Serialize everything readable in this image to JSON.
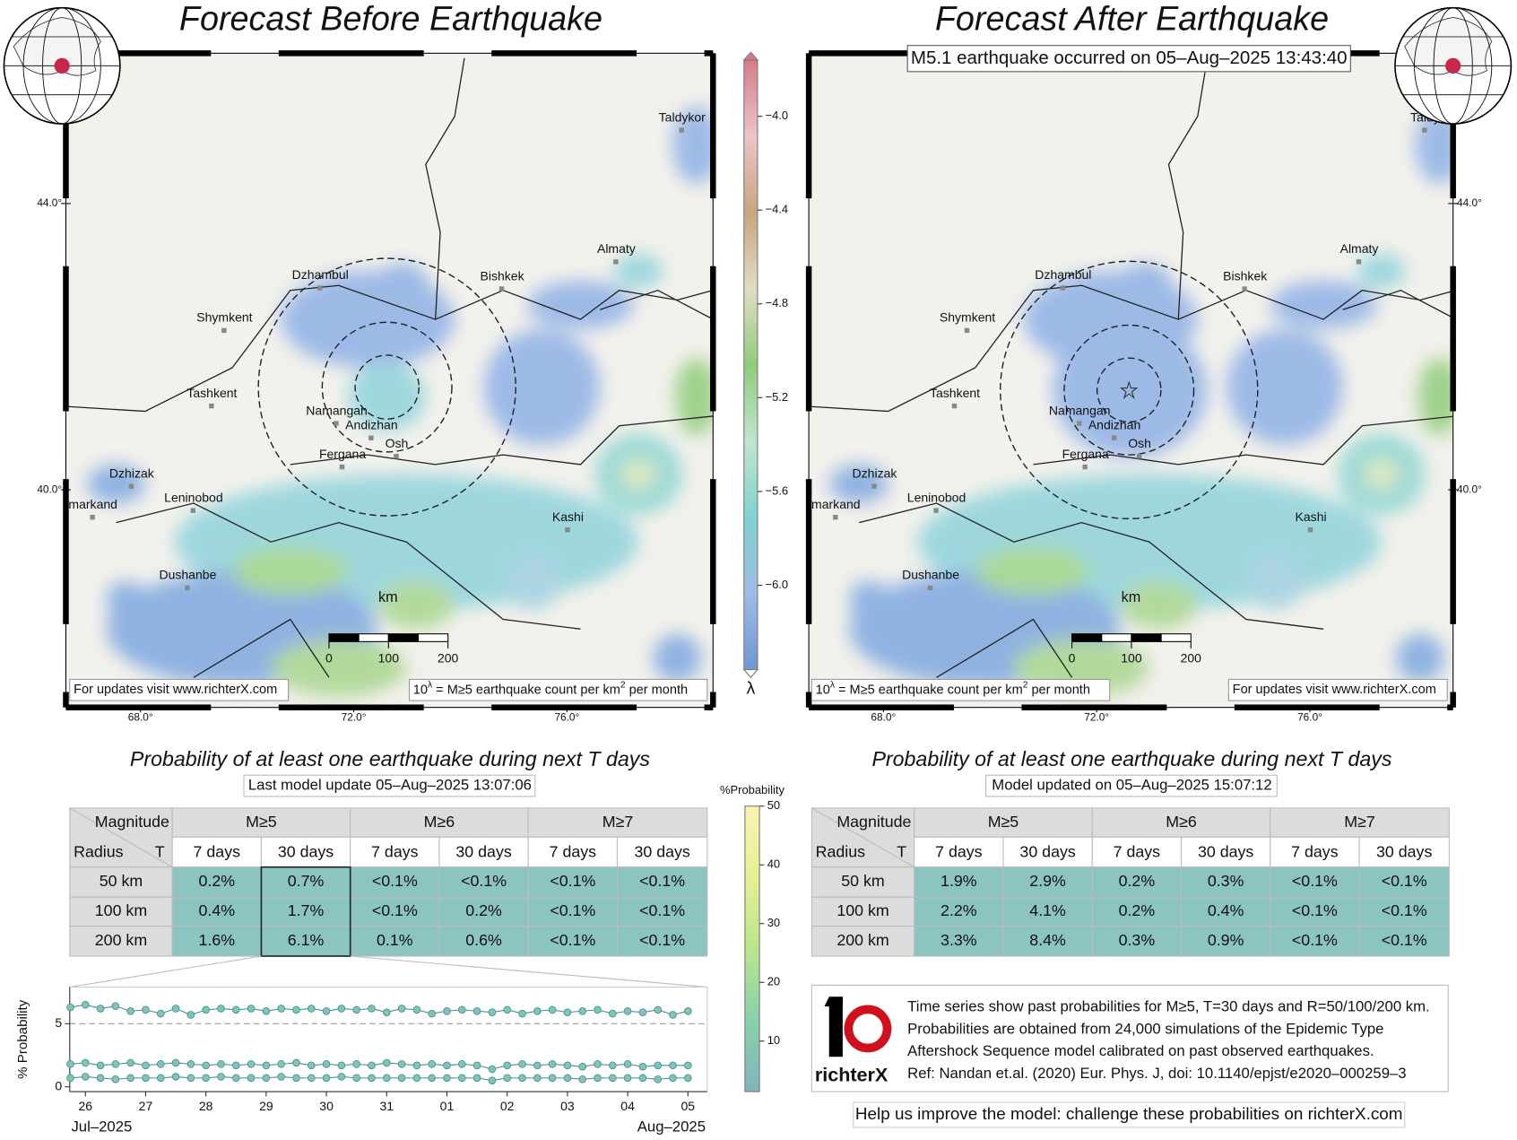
{
  "left_map": {
    "title": "Forecast Before Earthquake",
    "cities": [
      "Taldykor",
      "Almaty",
      "Dzhambul",
      "Bishkek",
      "Shymkent",
      "Tashkent",
      "Namangan",
      "Andizhan",
      "Osh",
      "Fergana",
      "Dzhizak",
      "markand",
      "Leninobod",
      "Kashi",
      "Dushanbe"
    ]
  },
  "right_map": {
    "title": "Forecast After Earthquake",
    "annotation": "M5.1 earthquake occurred on 05–Aug–2025 13:43:40",
    "cities": [
      "Taldy",
      "Almaty",
      "Dzhambul",
      "Bishkek",
      "Shymkent",
      "Tashkent",
      "Namangan",
      "Andizhan",
      "Osh",
      "Fergana",
      "Dzhizak",
      "markand",
      "Leninobod",
      "Kashi",
      "Dushanbe"
    ]
  },
  "map_axes": {
    "xlim": [
      66.6,
      78.74
    ],
    "ylim": [
      36.96,
      46.1
    ],
    "xticks": [
      {
        "value": 68,
        "label": "68.0°"
      },
      {
        "value": 72,
        "label": "72.0°"
      },
      {
        "value": 76,
        "label": "76.0°"
      }
    ],
    "yticks": [
      {
        "value": 40,
        "label": "40.0°"
      },
      {
        "value": 44,
        "label": "44.0°"
      }
    ]
  },
  "footer_site": "For updates visit www.richterX.com",
  "density_note": [
    "10",
    "λ",
    " = M≥5 earthquake count per km",
    "2",
    " per month"
  ],
  "scale_bar": {
    "unit": "km",
    "ticks": [
      0,
      100,
      200
    ]
  },
  "lambda_colorbar": {
    "label": "λ",
    "lim": [
      -6.36,
      -3.76
    ],
    "ticks": [
      {
        "value": -4.0,
        "label": "−4.0"
      },
      {
        "value": -4.4,
        "label": "−4.4"
      },
      {
        "value": -4.8,
        "label": "−4.8"
      },
      {
        "value": -5.2,
        "label": "−5.2"
      },
      {
        "value": -5.6,
        "label": "−5.6"
      },
      {
        "value": -6.0,
        "label": "−6.0"
      }
    ],
    "colors": [
      "#7097d4",
      "#9dbde6",
      "#80d2d0",
      "#bfe6cc",
      "#8fcc7a",
      "#e3dcc6",
      "#c9a57e",
      "#ecc4c7",
      "#d67c88"
    ]
  },
  "probability_colorbar": {
    "label": "%Probability",
    "lim": [
      1.4,
      50
    ],
    "ticks": [
      10,
      20,
      30,
      40,
      50
    ],
    "colors": [
      "#82b4bd",
      "#86d2aa",
      "#b9e68c",
      "#e6ef92",
      "#fbf3b0"
    ]
  },
  "table_header": {
    "magnitude": "Magnitude",
    "radius": "Radius",
    "t": "T",
    "magnitudes": [
      "M≥5",
      "M≥6",
      "M≥7"
    ],
    "windows": [
      "7 days",
      "30 days"
    ]
  },
  "table_cell_color": "#8cc4c1",
  "left_panel": {
    "title": "Probability of at least one earthquake during next T days",
    "subtitle": "Last model update 05–Aug–2025 13:07:06",
    "rows": [
      [
        "50 km",
        "0.2%",
        "0.7%",
        "<0.1%",
        "<0.1%",
        "<0.1%",
        "<0.1%"
      ],
      [
        "100 km",
        "0.4%",
        "1.7%",
        "<0.1%",
        "0.2%",
        "<0.1%",
        "<0.1%"
      ],
      [
        "200 km",
        "1.6%",
        "6.1%",
        "0.1%",
        "0.6%",
        "<0.1%",
        "<0.1%"
      ]
    ]
  },
  "right_panel": {
    "title": "Probability of at least one earthquake during next T days",
    "subtitle": "Model updated on 05–Aug–2025 15:07:12",
    "rows": [
      [
        "50 km",
        "1.9%",
        "2.9%",
        "0.2%",
        "0.3%",
        "<0.1%",
        "<0.1%"
      ],
      [
        "100 km",
        "2.2%",
        "4.1%",
        "0.2%",
        "0.4%",
        "<0.1%",
        "<0.1%"
      ],
      [
        "200 km",
        "3.3%",
        "8.4%",
        "0.3%",
        "0.9%",
        "<0.1%",
        "<0.1%"
      ]
    ]
  },
  "chart_data": {
    "type": "line",
    "ylabel": "% Probability",
    "x": [
      25.75,
      26.0,
      26.25,
      26.5,
      26.75,
      27.0,
      27.25,
      27.5,
      27.75,
      28.0,
      28.25,
      28.5,
      28.75,
      29.0,
      29.25,
      29.5,
      29.75,
      30.0,
      30.25,
      30.5,
      30.75,
      31.0,
      31.25,
      31.5,
      31.75,
      32.0,
      32.25,
      32.5,
      32.75,
      33.0,
      33.25,
      33.5,
      33.75,
      34.0,
      34.25,
      34.5,
      34.75,
      35.0,
      35.25,
      35.5,
      35.75,
      36.0
    ],
    "series": [
      {
        "color": "#7fc4bc",
        "values": [
          6.3,
          6.5,
          6.2,
          6.4,
          6.0,
          6.1,
          5.8,
          6.2,
          5.7,
          6.1,
          6.2,
          6.1,
          6.2,
          6.0,
          6.2,
          6.1,
          6.2,
          6.0,
          6.2,
          6.1,
          6.2,
          5.9,
          6.2,
          6.1,
          5.8,
          6.0,
          6.1,
          6.0,
          5.9,
          6.1,
          5.8,
          6.0,
          6.1,
          5.9,
          6.0,
          6.1,
          5.8,
          6.0,
          5.9,
          6.1,
          5.7,
          6.0
        ]
      },
      {
        "color": "#7fc4bc",
        "values": [
          1.8,
          1.9,
          1.7,
          1.8,
          1.9,
          1.7,
          1.8,
          1.9,
          1.8,
          1.7,
          1.8,
          1.7,
          1.8,
          1.7,
          1.8,
          1.9,
          1.7,
          1.8,
          1.7,
          1.8,
          1.7,
          1.9,
          1.8,
          1.7,
          1.8,
          1.7,
          1.8,
          1.7,
          1.4,
          1.7,
          1.8,
          1.7,
          1.8,
          1.7,
          1.6,
          1.8,
          1.7,
          1.8,
          1.6,
          1.7,
          1.7,
          1.7
        ]
      },
      {
        "color": "#7fc4bc",
        "values": [
          0.7,
          0.8,
          0.7,
          0.6,
          0.7,
          0.7,
          0.7,
          0.8,
          0.7,
          0.7,
          0.8,
          0.7,
          0.7,
          0.7,
          0.8,
          0.7,
          0.7,
          0.7,
          0.8,
          0.7,
          0.7,
          0.7,
          0.7,
          0.7,
          0.7,
          0.7,
          0.7,
          0.7,
          0.5,
          0.7,
          0.7,
          0.7,
          0.7,
          0.7,
          0.6,
          0.7,
          0.7,
          0.7,
          0.7,
          0.6,
          0.7,
          0.7
        ]
      }
    ],
    "xlim": [
      25.74,
      36.32
    ],
    "xticks": [
      26,
      27,
      28,
      29,
      30,
      31,
      {
        "value": 32,
        "label": "01"
      },
      {
        "value": 33,
        "label": "02"
      },
      {
        "value": 34,
        "label": "03"
      },
      {
        "value": 35,
        "label": "04"
      },
      {
        "value": 36,
        "label": "05"
      }
    ],
    "x_period_labels": [
      "Jul–2025",
      "Aug–2025"
    ],
    "ylim": [
      -0.38,
      7.9
    ],
    "yticks": [
      0,
      5
    ],
    "reference_line": 5
  },
  "info": {
    "logo": "richterX",
    "lines": [
      "Time series show past probabilities for M≥5, T=30 days and R=50/100/200 km.",
      "Probabilities are obtained from 24,000 simulations of the Epidemic Type",
      "Aftershock Sequence model calibrated on past observed earthquakes.",
      "Ref: Nandan et.al. (2020) Eur. Phys. J, doi: 10.1140/epjst/e2020–000259–3"
    ],
    "cta": "Help us improve the model: challenge these probabilities on richterX.com"
  }
}
